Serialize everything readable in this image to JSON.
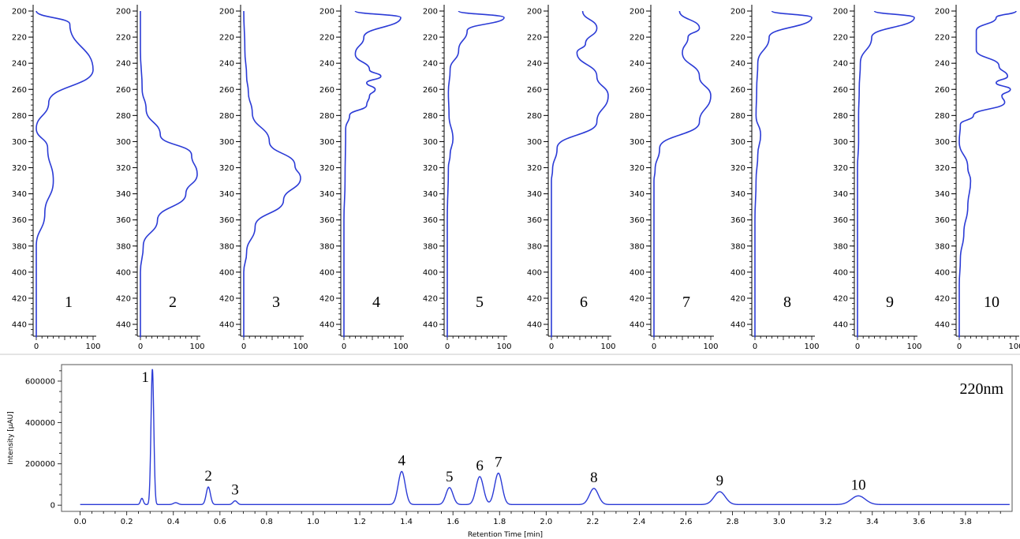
{
  "chart_data": [
    {
      "type": "line",
      "title": "",
      "panels": [
        {
          "label": "1",
          "x": [
            0,
            59,
            100,
            22,
            0,
            20,
            30,
            15,
            0,
            0,
            0
          ],
          "y": [
            200,
            210,
            245,
            270,
            290,
            305,
            330,
            355,
            380,
            400,
            450
          ]
        },
        {
          "label": "2",
          "x": [
            0,
            0,
            3,
            10,
            35,
            90,
            100,
            80,
            30,
            5,
            0,
            0
          ],
          "y": [
            200,
            230,
            260,
            275,
            295,
            310,
            325,
            340,
            360,
            380,
            400,
            450
          ]
        },
        {
          "label": "3",
          "x": [
            0,
            2,
            5,
            8,
            15,
            45,
            90,
            100,
            70,
            20,
            5,
            0,
            0
          ],
          "y": [
            200,
            230,
            250,
            262,
            278,
            300,
            318,
            328,
            345,
            365,
            385,
            400,
            450
          ]
        },
        {
          "label": "4",
          "x": [
            20,
            100,
            35,
            20,
            45,
            65,
            40,
            55,
            45,
            40,
            10,
            3,
            2,
            0,
            0
          ],
          "y": [
            200,
            205,
            220,
            233,
            245,
            250,
            255,
            260,
            265,
            272,
            280,
            290,
            330,
            360,
            450
          ]
        },
        {
          "label": "5",
          "x": [
            20,
            100,
            35,
            20,
            5,
            2,
            3,
            10,
            5,
            2,
            0,
            0
          ],
          "y": [
            200,
            205,
            215,
            230,
            245,
            262,
            280,
            298,
            310,
            320,
            360,
            450
          ]
        },
        {
          "label": "6",
          "x": [
            55,
            80,
            60,
            45,
            80,
            100,
            80,
            10,
            2,
            0,
            0
          ],
          "y": [
            200,
            213,
            225,
            232,
            250,
            265,
            285,
            305,
            322,
            330,
            450
          ]
        },
        {
          "label": "7",
          "x": [
            45,
            80,
            60,
            50,
            80,
            100,
            80,
            10,
            2,
            0,
            0
          ],
          "y": [
            200,
            213,
            220,
            232,
            250,
            265,
            285,
            305,
            322,
            330,
            450
          ]
        },
        {
          "label": "8",
          "x": [
            30,
            100,
            25,
            5,
            3,
            2,
            10,
            5,
            2,
            0,
            0
          ],
          "y": [
            200,
            205,
            220,
            240,
            260,
            280,
            295,
            310,
            330,
            360,
            450
          ]
        },
        {
          "label": "9",
          "x": [
            30,
            100,
            25,
            5,
            3,
            2,
            2,
            0,
            0
          ],
          "y": [
            200,
            205,
            220,
            240,
            260,
            280,
            300,
            320,
            450
          ]
        },
        {
          "label": "10",
          "x": [
            100,
            65,
            30,
            30,
            70,
            85,
            65,
            90,
            75,
            80,
            25,
            2,
            0,
            15,
            20,
            15,
            8,
            2,
            0,
            0
          ],
          "y": [
            200,
            205,
            215,
            230,
            242,
            250,
            255,
            260,
            265,
            270,
            280,
            287,
            300,
            320,
            330,
            350,
            370,
            390,
            410,
            450
          ]
        }
      ],
      "ylim": [
        200,
        450
      ],
      "xlim": [
        0,
        100
      ],
      "yticks": [
        "200",
        "220",
        "240",
        "260",
        "280",
        "300",
        "320",
        "340",
        "360",
        "380",
        "400",
        "420",
        "440"
      ],
      "xticks": [
        "0",
        "100"
      ],
      "color": "#2b3bd6"
    },
    {
      "type": "line",
      "title": "",
      "xlabel": "Retention Time [min]",
      "ylabel": "Intensity [µAU]",
      "annotation": "220nm",
      "xlim": [
        -0.08,
        4.0
      ],
      "ylim": [
        -30000,
        680000
      ],
      "xticks": [
        "0.0",
        "0.2",
        "0.4",
        "0.6",
        "0.8",
        "1.0",
        "1.2",
        "1.4",
        "1.6",
        "1.8",
        "2.0",
        "2.2",
        "2.4",
        "2.6",
        "2.8",
        "3.0",
        "3.2",
        "3.4",
        "3.6",
        "3.8"
      ],
      "yticks": [
        "0",
        "200000",
        "400000",
        "600000"
      ],
      "baseline": 3000,
      "peaks": [
        {
          "label": "",
          "rt": 0.265,
          "height": 30000,
          "width": 0.006
        },
        {
          "label": "1",
          "rt": 0.31,
          "height": 655000,
          "width": 0.006
        },
        {
          "label": "",
          "rt": 0.41,
          "height": 9000,
          "width": 0.01
        },
        {
          "label": "2",
          "rt": 0.55,
          "height": 85000,
          "width": 0.009
        },
        {
          "label": "3",
          "rt": 0.665,
          "height": 18000,
          "width": 0.009
        },
        {
          "label": "4",
          "rt": 1.38,
          "height": 160000,
          "width": 0.015
        },
        {
          "label": "5",
          "rt": 1.585,
          "height": 82000,
          "width": 0.015
        },
        {
          "label": "6",
          "rt": 1.715,
          "height": 135000,
          "width": 0.016
        },
        {
          "label": "7",
          "rt": 1.795,
          "height": 152000,
          "width": 0.016
        },
        {
          "label": "8",
          "rt": 2.205,
          "height": 78000,
          "width": 0.019
        },
        {
          "label": "9",
          "rt": 2.745,
          "height": 62000,
          "width": 0.024
        },
        {
          "label": "10",
          "rt": 3.34,
          "height": 42000,
          "width": 0.03
        }
      ],
      "color": "#2b3bd6"
    }
  ]
}
